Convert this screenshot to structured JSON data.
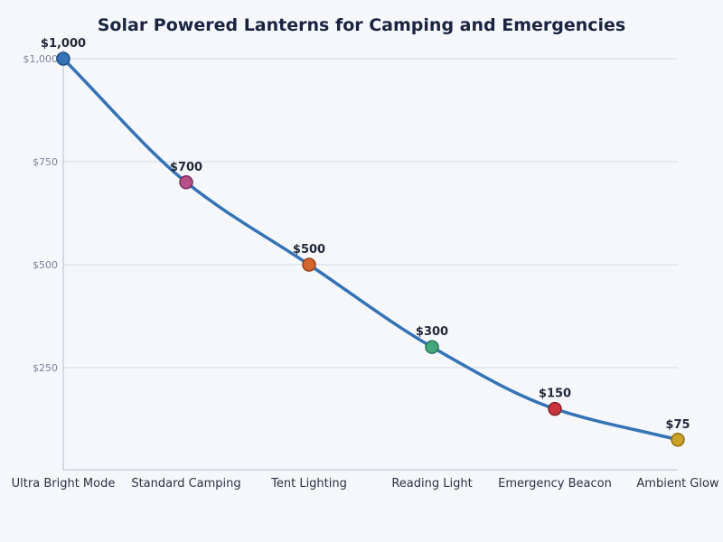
{
  "chart_data": {
    "type": "line",
    "title": "Solar Powered Lanterns for Camping and Emergencies",
    "xlabel": "",
    "ylabel": "",
    "categories": [
      "Ultra Bright Mode",
      "Standard Camping",
      "Tent Lighting",
      "Reading Light",
      "Emergency Beacon",
      "Ambient Glow"
    ],
    "values": [
      1000,
      700,
      500,
      300,
      150,
      75
    ],
    "data_labels": [
      "$1,000",
      "$700",
      "$500",
      "$300",
      "$150",
      "$75"
    ],
    "ylim": [
      0,
      1000
    ],
    "yticks": [
      250,
      500,
      750,
      1000
    ],
    "ytick_labels": [
      "$250",
      "$500",
      "$750",
      "$1,000"
    ],
    "grid": true,
    "line_color": "#3473b5",
    "marker_colors": [
      "#3473b5",
      "#b5508a",
      "#d4652e",
      "#44a87c",
      "#c9353f",
      "#c9a227"
    ],
    "marker_edge_colors": [
      "#1f4f86",
      "#7d2c5c",
      "#94431c",
      "#2b7556",
      "#8b1f27",
      "#8c7015"
    ]
  }
}
